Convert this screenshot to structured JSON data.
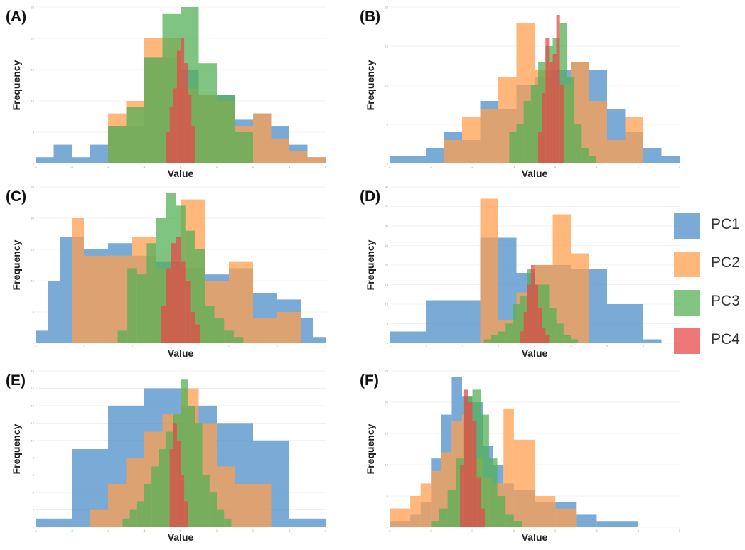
{
  "legend": [
    {
      "label": "PC1",
      "color": "#4e8fc9"
    },
    {
      "label": "PC2",
      "color": "#ff9f50"
    },
    {
      "label": "PC3",
      "color": "#55b157"
    },
    {
      "label": "PC4",
      "color": "#e84a4a"
    }
  ],
  "chart_data": [
    {
      "type": "bar",
      "panel": "(A)",
      "xlabel": "Value",
      "ylabel": "Frequency",
      "xlim": [
        -4,
        4
      ],
      "ylim": [
        0,
        25
      ],
      "yticks": [
        "0",
        "5",
        "10",
        "15",
        "20",
        "25"
      ],
      "xticks": [
        "-4",
        "-3",
        "-2",
        "-1",
        "0",
        "1",
        "2",
        "3",
        "4"
      ],
      "series": [
        {
          "name": "PC1",
          "edges": [
            -4,
            -3.5,
            -3,
            -2.5,
            -2,
            -1.5,
            -1,
            -0.5,
            0,
            0.5,
            1,
            1.5,
            2,
            2.5,
            3,
            3.5,
            4
          ],
          "values": [
            1,
            3,
            1,
            3,
            6,
            6,
            17,
            17,
            15,
            11,
            11,
            7,
            8,
            6,
            3,
            1
          ]
        },
        {
          "name": "PC2",
          "edges": [
            -4,
            -3.5,
            -3,
            -2.5,
            -2,
            -1.5,
            -1,
            -0.5,
            0,
            0.5,
            1,
            1.5,
            2,
            2.5,
            3,
            3.5,
            4
          ],
          "values": [
            0,
            0,
            0,
            0,
            8,
            10,
            20,
            20,
            12,
            11,
            10,
            6,
            8,
            4,
            2,
            1
          ]
        },
        {
          "name": "PC3",
          "edges": [
            -3,
            -2.5,
            -2,
            -1.5,
            -1,
            -0.5,
            0,
            0.5,
            1,
            1.5,
            2
          ],
          "values": [
            0,
            0,
            6,
            9,
            17,
            24,
            25,
            16,
            11,
            5,
            0
          ]
        },
        {
          "name": "PC4",
          "edges": [
            -0.4,
            -0.3,
            -0.2,
            -0.1,
            0,
            0.1,
            0.2,
            0.3,
            0.4
          ],
          "values": [
            5,
            9,
            12,
            18,
            20,
            16,
            11,
            6
          ]
        }
      ]
    },
    {
      "type": "bar",
      "panel": "(B)",
      "xlabel": "Value",
      "ylabel": "Frequency",
      "xlim": [
        -4.5,
        3.5
      ],
      "ylim": [
        0,
        20
      ],
      "yticks": [
        "0",
        "5",
        "10",
        "15",
        "20"
      ],
      "xticks": [
        "-4",
        "-3",
        "-2",
        "-1",
        "0",
        "1",
        "2",
        "3"
      ],
      "series": [
        {
          "name": "PC1",
          "edges": [
            -4.5,
            -3.5,
            -3,
            -2.5,
            -2,
            -1.5,
            -1,
            -0.5,
            0,
            0.5,
            1,
            1.5,
            2,
            2.5,
            3,
            3.5
          ],
          "values": [
            1,
            2,
            4,
            3,
            8,
            7,
            10,
            11,
            12,
            13,
            12,
            7,
            4,
            2,
            1
          ]
        },
        {
          "name": "PC2",
          "edges": [
            -3,
            -2.5,
            -2,
            -1.5,
            -1,
            -0.5,
            0,
            0.5,
            1,
            1.5,
            2,
            2.5,
            3
          ],
          "values": [
            3,
            6,
            7,
            11,
            18,
            12,
            10,
            13,
            8,
            3,
            6,
            0
          ]
        },
        {
          "name": "PC3",
          "edges": [
            -1.2,
            -1,
            -0.8,
            -0.6,
            -0.4,
            -0.2,
            0,
            0.2,
            0.4,
            0.6,
            0.8,
            1,
            1.2
          ],
          "values": [
            4,
            5,
            8,
            10,
            13,
            15,
            16,
            18,
            11,
            5,
            2,
            1
          ]
        },
        {
          "name": "PC4",
          "edges": [
            -0.4,
            -0.3,
            -0.2,
            -0.1,
            0,
            0.1,
            0.2,
            0.3
          ],
          "values": [
            4,
            9,
            16,
            13,
            14,
            19,
            10
          ]
        }
      ]
    },
    {
      "type": "bar",
      "panel": "(C)",
      "xlabel": "Value",
      "ylabel": "Frequency",
      "xlim": [
        -3,
        3
      ],
      "ylim": [
        0,
        25
      ],
      "yticks": [
        "0",
        "5",
        "10",
        "15",
        "20",
        "25"
      ],
      "xticks": [
        "-3",
        "-2",
        "-1",
        "0",
        "1",
        "2",
        "3"
      ],
      "series": [
        {
          "name": "PC1",
          "edges": [
            -3,
            -2.75,
            -2.5,
            -2,
            -1.5,
            -1,
            -0.5,
            0,
            0.5,
            1,
            1.5,
            2,
            2.5,
            2.75,
            3
          ],
          "values": [
            2,
            10,
            17,
            15,
            16,
            14,
            13,
            12,
            11,
            12,
            8,
            7,
            4,
            1
          ]
        },
        {
          "name": "PC2",
          "edges": [
            -3,
            -2.5,
            -2.25,
            -2,
            -1.5,
            -1,
            -0.5,
            0,
            0.5,
            1,
            1.5,
            2,
            2.5,
            3
          ],
          "values": [
            0,
            0,
            20,
            14,
            14,
            17,
            12,
            23,
            10,
            13,
            4,
            5,
            0
          ]
        },
        {
          "name": "PC3",
          "edges": [
            -1.3,
            -1.1,
            -0.9,
            -0.7,
            -0.5,
            -0.3,
            -0.1,
            0.1,
            0.3,
            0.5,
            0.7,
            0.9,
            1.1,
            1.3
          ],
          "values": [
            2,
            12,
            11,
            16,
            20,
            24,
            22,
            18,
            15,
            6,
            4,
            2,
            1
          ]
        },
        {
          "name": "PC4",
          "edges": [
            -0.4,
            -0.3,
            -0.2,
            -0.1,
            0,
            0.1,
            0.2,
            0.3,
            0.4
          ],
          "values": [
            6,
            12,
            16,
            17,
            13,
            10,
            5,
            3
          ]
        }
      ]
    },
    {
      "type": "bar",
      "panel": "(D)",
      "xlabel": "Value",
      "ylabel": "Frequency",
      "xlim": [
        -4,
        4
      ],
      "ylim": [
        0,
        40
      ],
      "yticks": [
        "0",
        "5",
        "10",
        "15",
        "20",
        "25",
        "30",
        "35",
        "40"
      ],
      "xticks": [
        "-4",
        "-3",
        "-2",
        "-1",
        "0",
        "1",
        "2",
        "3",
        "4"
      ],
      "series": [
        {
          "name": "PC1",
          "edges": [
            -4,
            -3,
            -2,
            -1.5,
            -1,
            -0.5,
            0,
            0.5,
            1,
            1.5,
            2,
            3,
            3.5,
            4
          ],
          "values": [
            3,
            11,
            11,
            27,
            27,
            18,
            20,
            20,
            19,
            19,
            10,
            1,
            0
          ]
        },
        {
          "name": "PC2",
          "edges": [
            -2,
            -1.5,
            -1,
            -0.5,
            0,
            0.5,
            1,
            1.5
          ],
          "values": [
            0,
            37,
            6,
            13,
            20,
            33,
            23
          ]
        },
        {
          "name": "PC3",
          "edges": [
            -1.4,
            -1.2,
            -1,
            -0.8,
            -0.6,
            -0.4,
            -0.2,
            0,
            0.2,
            0.4,
            0.6,
            0.8,
            1,
            1.2,
            1.4
          ],
          "values": [
            1,
            2,
            3,
            5,
            10,
            12,
            19,
            15,
            15,
            9,
            5,
            2,
            1,
            0
          ]
        },
        {
          "name": "PC4",
          "edges": [
            -0.4,
            -0.3,
            -0.2,
            -0.1,
            0,
            0.1,
            0.2,
            0.3,
            0.4
          ],
          "values": [
            3,
            8,
            15,
            20,
            15,
            9,
            4,
            2
          ]
        }
      ]
    },
    {
      "type": "bar",
      "panel": "(E)",
      "xlabel": "Value",
      "ylabel": "Frequency",
      "xlim": [
        -4,
        4
      ],
      "ylim": [
        0,
        18
      ],
      "yticks": [
        "0",
        "2",
        "4",
        "6",
        "8",
        "10",
        "12",
        "14",
        "16",
        "18"
      ],
      "xticks": [
        "-4",
        "-3",
        "-2",
        "-1",
        "0",
        "1",
        "2",
        "3",
        "4"
      ],
      "series": [
        {
          "name": "PC1",
          "edges": [
            -4,
            -3,
            -2,
            -1,
            0,
            1,
            2,
            3,
            4
          ],
          "values": [
            1,
            9,
            14,
            16,
            14,
            12,
            10,
            1
          ]
        },
        {
          "name": "PC2",
          "edges": [
            -2.5,
            -2,
            -1.5,
            -1,
            -0.5,
            0,
            0.5,
            1,
            1.5,
            2,
            2.5
          ],
          "values": [
            2,
            5,
            8,
            11,
            13,
            16,
            12,
            7,
            5,
            5
          ]
        },
        {
          "name": "PC3",
          "edges": [
            -1.6,
            -1.4,
            -1.2,
            -1,
            -0.8,
            -0.6,
            -0.4,
            -0.2,
            0,
            0.2,
            0.4,
            0.6,
            0.8,
            1,
            1.2,
            1.4,
            1.6
          ],
          "values": [
            1,
            2,
            3,
            5,
            7,
            9,
            11,
            13,
            17,
            14,
            12,
            6,
            4,
            2,
            1,
            0
          ]
        },
        {
          "name": "PC4",
          "edges": [
            -0.3,
            -0.2,
            -0.1,
            0,
            0.1,
            0.2
          ],
          "values": [
            9,
            12,
            10,
            6,
            3
          ]
        }
      ]
    },
    {
      "type": "bar",
      "panel": "(F)",
      "xlabel": "Value",
      "ylabel": "Frequency",
      "xlim": [
        -2,
        5
      ],
      "ylim": [
        0,
        25
      ],
      "yticks": [
        "0",
        "5",
        "10",
        "15",
        "20",
        "25"
      ],
      "xticks": [
        "-2",
        "-1",
        "0",
        "1",
        "2",
        "3",
        "4",
        "5"
      ],
      "series": [
        {
          "name": "PC1",
          "edges": [
            -2,
            -1.5,
            -1.25,
            -1,
            -0.75,
            -0.5,
            -0.25,
            0,
            0.25,
            0.5,
            0.75,
            1,
            1.5,
            2,
            2.5,
            3,
            4,
            5
          ],
          "values": [
            1,
            2,
            4,
            11,
            18,
            24,
            21,
            20,
            13,
            10,
            7,
            6,
            4,
            4,
            2,
            1,
            0
          ]
        },
        {
          "name": "PC2",
          "edges": [
            -2,
            -1.5,
            -1.25,
            -1,
            -0.75,
            -0.5,
            -0.25,
            0,
            0.25,
            0.5,
            0.75,
            1,
            1.5,
            2,
            2.5,
            3,
            4,
            5
          ],
          "values": [
            3,
            5,
            7,
            9,
            12,
            17,
            18,
            11,
            8,
            7,
            19,
            14,
            5,
            3,
            0,
            0,
            0
          ]
        },
        {
          "name": "PC3",
          "edges": [
            -1,
            -0.8,
            -0.6,
            -0.4,
            -0.2,
            0,
            0.2,
            0.4,
            0.6,
            0.8,
            1,
            1.2
          ],
          "values": [
            1,
            3,
            6,
            11,
            21,
            22,
            18,
            11,
            5,
            2,
            1
          ]
        },
        {
          "name": "PC4",
          "edges": [
            -0.3,
            -0.2,
            -0.1,
            0,
            0.1,
            0.2,
            0.3
          ],
          "values": [
            10,
            22,
            20,
            17,
            8,
            3
          ]
        }
      ]
    }
  ]
}
